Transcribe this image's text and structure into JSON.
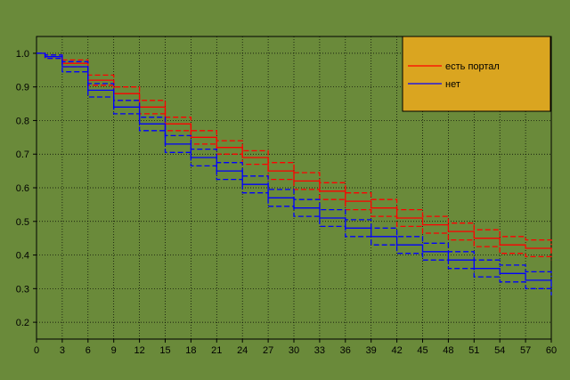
{
  "chart_data": {
    "type": "line",
    "title": "",
    "xlabel": "",
    "ylabel": "",
    "xlim": [
      0,
      60
    ],
    "ylim": [
      0.15,
      1.05
    ],
    "x_ticks": [
      0,
      3,
      6,
      9,
      12,
      15,
      18,
      21,
      24,
      27,
      30,
      33,
      36,
      39,
      42,
      45,
      48,
      51,
      54,
      57,
      60
    ],
    "y_ticks": [
      0.2,
      0.3,
      0.4,
      0.5,
      0.6,
      0.7,
      0.8,
      0.9,
      1.0
    ],
    "y_tick_labels": [
      "0.2",
      "0.3",
      "0.4",
      "0.5",
      "0.6",
      "0.7",
      "0.8",
      "0.9",
      "1.0"
    ],
    "grid": true,
    "legend_position": "top-right",
    "x": [
      0,
      1,
      3,
      6,
      9,
      12,
      15,
      18,
      21,
      24,
      27,
      30,
      33,
      36,
      39,
      42,
      45,
      48,
      51,
      54,
      57,
      60
    ],
    "series": [
      {
        "name": "есть портал",
        "color": "#ff0000",
        "line_style": "solid",
        "values": [
          1.0,
          0.99,
          0.97,
          0.92,
          0.88,
          0.84,
          0.79,
          0.75,
          0.72,
          0.69,
          0.65,
          0.62,
          0.59,
          0.56,
          0.54,
          0.51,
          0.49,
          0.47,
          0.45,
          0.43,
          0.42,
          0.405
        ]
      },
      {
        "name": "",
        "color": "#ff0000",
        "line_style": "dashed",
        "values": [
          1.0,
          0.995,
          0.98,
          0.935,
          0.9,
          0.86,
          0.81,
          0.77,
          0.74,
          0.71,
          0.675,
          0.645,
          0.615,
          0.585,
          0.565,
          0.535,
          0.515,
          0.495,
          0.475,
          0.455,
          0.445,
          0.43
        ]
      },
      {
        "name": "",
        "color": "#ff0000",
        "line_style": "dashed",
        "values": [
          1.0,
          0.985,
          0.96,
          0.905,
          0.86,
          0.82,
          0.77,
          0.73,
          0.7,
          0.67,
          0.625,
          0.595,
          0.565,
          0.535,
          0.515,
          0.485,
          0.465,
          0.445,
          0.425,
          0.405,
          0.395,
          0.385
        ]
      },
      {
        "name": "нет",
        "color": "#0000ff",
        "line_style": "solid",
        "values": [
          1.0,
          0.99,
          0.96,
          0.89,
          0.84,
          0.79,
          0.73,
          0.69,
          0.65,
          0.61,
          0.57,
          0.54,
          0.51,
          0.48,
          0.455,
          0.43,
          0.41,
          0.385,
          0.36,
          0.345,
          0.325,
          0.305
        ]
      },
      {
        "name": "",
        "color": "#0000ff",
        "line_style": "dashed",
        "values": [
          1.0,
          0.995,
          0.975,
          0.91,
          0.86,
          0.81,
          0.755,
          0.715,
          0.675,
          0.635,
          0.595,
          0.565,
          0.535,
          0.505,
          0.48,
          0.455,
          0.435,
          0.41,
          0.385,
          0.37,
          0.35,
          0.335
        ]
      },
      {
        "name": "",
        "color": "#0000ff",
        "line_style": "dashed",
        "values": [
          1.0,
          0.985,
          0.945,
          0.87,
          0.82,
          0.77,
          0.705,
          0.665,
          0.625,
          0.585,
          0.545,
          0.515,
          0.485,
          0.455,
          0.43,
          0.405,
          0.385,
          0.36,
          0.335,
          0.32,
          0.3,
          0.28
        ]
      }
    ],
    "colors": {
      "background": "#6a8a3a",
      "plot_area": "#6a8a3a",
      "legend_background": "#daa520",
      "grid": "#000000"
    }
  }
}
